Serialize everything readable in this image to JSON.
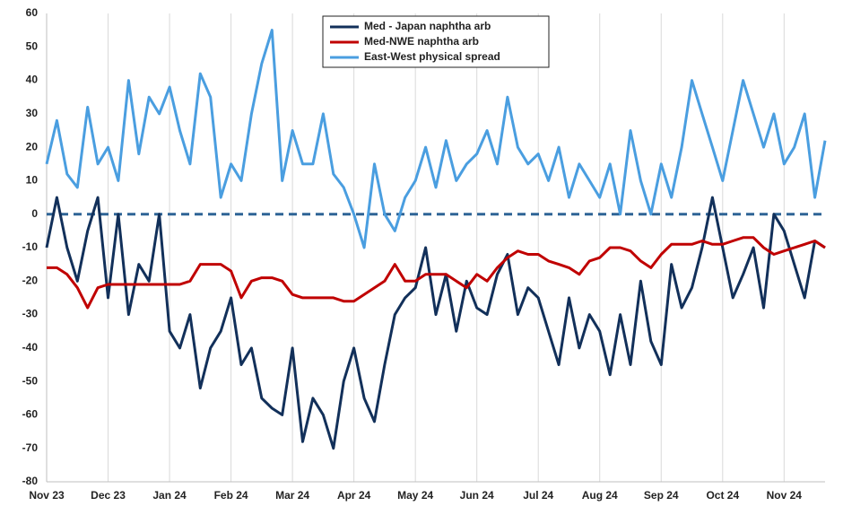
{
  "chart_data": {
    "type": "line",
    "categories": [
      "Nov 23",
      null,
      null,
      null,
      null,
      null,
      "Dec 23",
      null,
      null,
      null,
      null,
      null,
      "Jan 24",
      null,
      null,
      null,
      null,
      null,
      "Feb 24",
      null,
      null,
      null,
      null,
      null,
      "Mar 24",
      null,
      null,
      null,
      null,
      null,
      "Apr 24",
      null,
      null,
      null,
      null,
      null,
      "May 24",
      null,
      null,
      null,
      null,
      null,
      "Jun 24",
      null,
      null,
      null,
      null,
      null,
      "Jul 24",
      null,
      null,
      null,
      null,
      null,
      "Aug 24",
      null,
      null,
      null,
      null,
      null,
      "Sep 24",
      null,
      null,
      null,
      null,
      null,
      "Oct 24",
      null,
      null,
      null,
      null,
      null,
      "Nov 24",
      null,
      null,
      null,
      null
    ],
    "series": [
      {
        "name": "Med - Japan naphtha arb",
        "color": "#12305a",
        "values": [
          -10,
          5,
          -10,
          -20,
          -5,
          5,
          -25,
          0,
          -30,
          -15,
          -20,
          0,
          -35,
          -40,
          -30,
          -52,
          -40,
          -35,
          -25,
          -45,
          -40,
          -55,
          -58,
          -60,
          -40,
          -68,
          -55,
          -60,
          -70,
          -50,
          -40,
          -55,
          -62,
          -45,
          -30,
          -25,
          -22,
          -10,
          -30,
          -18,
          -35,
          -20,
          -28,
          -30,
          -18,
          -12,
          -30,
          -22,
          -25,
          -35,
          -45,
          -25,
          -40,
          -30,
          -35,
          -48,
          -30,
          -45,
          -20,
          -38,
          -45,
          -15,
          -28,
          -22,
          -10,
          5,
          -10,
          -25,
          -18,
          -10,
          -28,
          0,
          -5,
          -15,
          -25,
          -8,
          -10
        ]
      },
      {
        "name": "Med-NWE naphtha arb",
        "color": "#c00000",
        "values": [
          -16,
          -16,
          -18,
          -22,
          -28,
          -22,
          -21,
          -21,
          -21,
          -21,
          -21,
          -21,
          -21,
          -21,
          -20,
          -15,
          -15,
          -15,
          -17,
          -25,
          -20,
          -19,
          -19,
          -20,
          -24,
          -25,
          -25,
          -25,
          -25,
          -26,
          -26,
          -24,
          -22,
          -20,
          -15,
          -20,
          -20,
          -18,
          -18,
          -18,
          -20,
          -22,
          -18,
          -20,
          -16,
          -13,
          -11,
          -12,
          -12,
          -14,
          -15,
          -16,
          -18,
          -14,
          -13,
          -10,
          -10,
          -11,
          -14,
          -16,
          -12,
          -9,
          -9,
          -9,
          -8,
          -9,
          -9,
          -8,
          -7,
          -7,
          -10,
          -12,
          -11,
          -10,
          -9,
          -8,
          -10
        ]
      },
      {
        "name": "East-West physical spread",
        "color": "#4a9ee0",
        "values": [
          15,
          28,
          12,
          8,
          32,
          15,
          20,
          10,
          40,
          18,
          35,
          30,
          38,
          25,
          15,
          42,
          35,
          5,
          15,
          10,
          30,
          45,
          55,
          10,
          25,
          15,
          15,
          30,
          12,
          8,
          0,
          -10,
          15,
          0,
          -5,
          5,
          10,
          20,
          8,
          22,
          10,
          15,
          18,
          25,
          15,
          35,
          20,
          15,
          18,
          10,
          20,
          5,
          15,
          10,
          5,
          15,
          0,
          25,
          10,
          0,
          15,
          5,
          20,
          40,
          30,
          20,
          10,
          25,
          40,
          30,
          20,
          30,
          15,
          20,
          30,
          5,
          22
        ]
      }
    ],
    "ylim": [
      -80,
      60
    ],
    "yticks": [
      -80,
      -70,
      -60,
      -50,
      -40,
      -30,
      -20,
      -10,
      0,
      10,
      20,
      30,
      40,
      50,
      60
    ],
    "grid": "vertical",
    "zero_line_color": "#2e6496",
    "legend": "top"
  }
}
